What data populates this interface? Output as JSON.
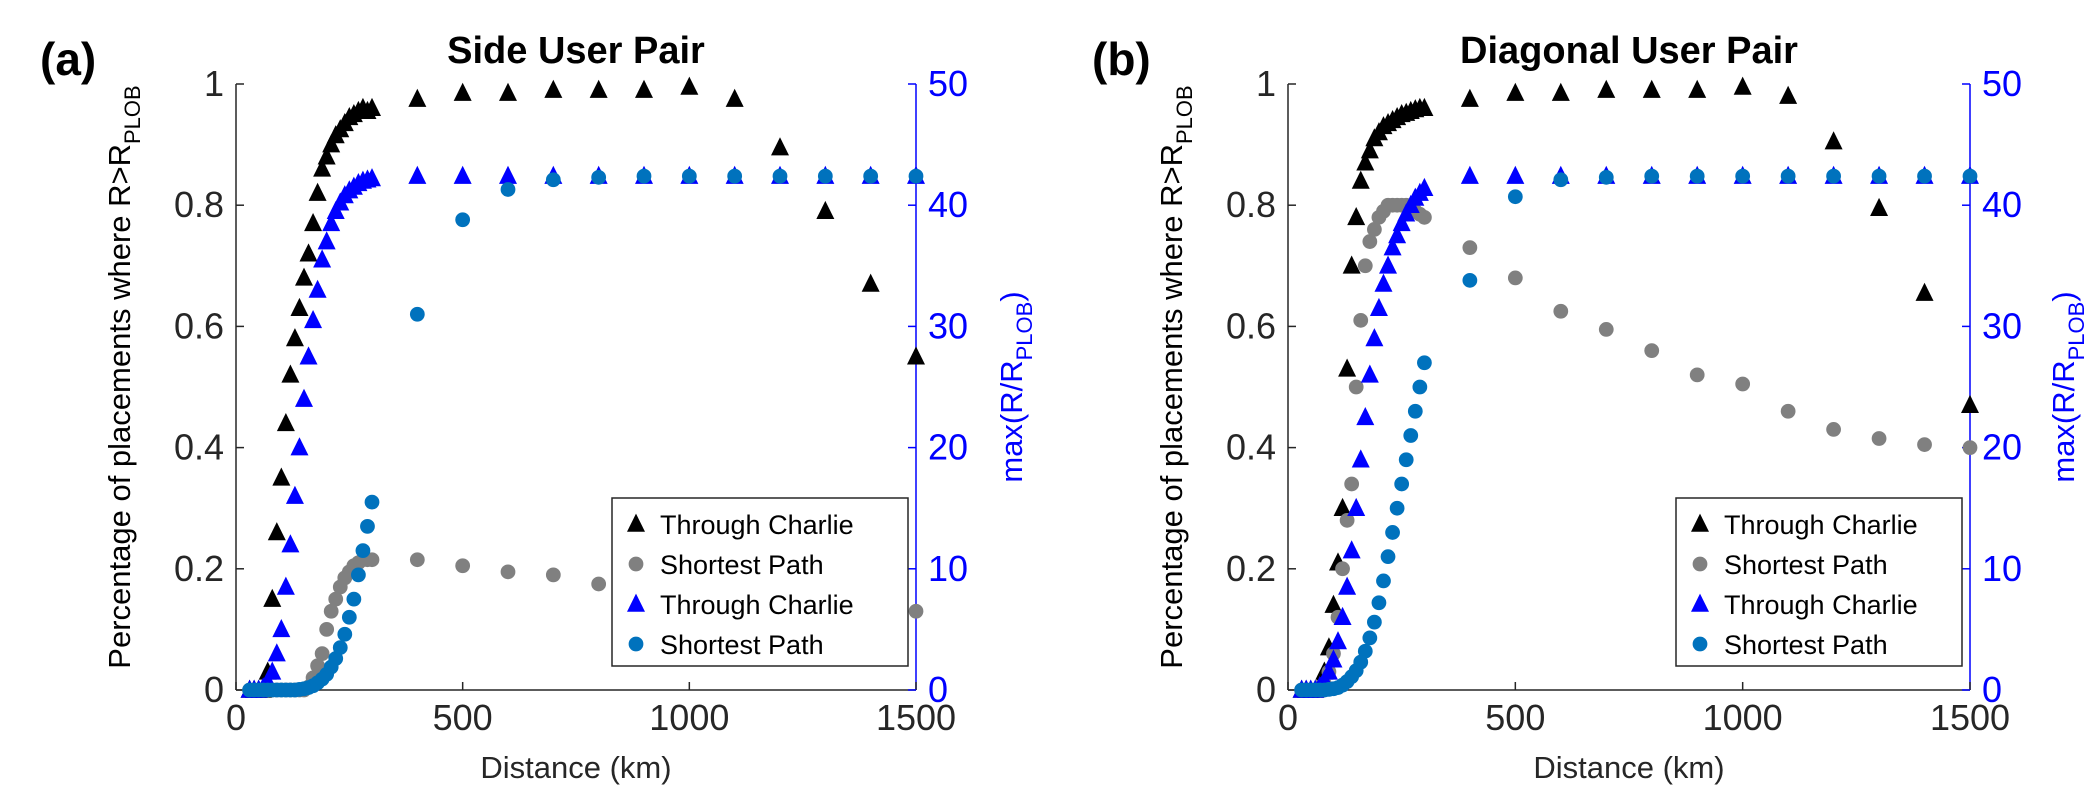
{
  "chart_data": [
    {
      "type": "scatter",
      "panel_label": "(a)",
      "title": "Side User Pair",
      "xlabel": "Distance (km)",
      "ylabel": {
        "main": "Percentage of placements where R>R",
        "sub": "PLOB"
      },
      "ylabel_right": {
        "main": "max(R/R",
        "sub": "PLOB",
        "close": ")"
      },
      "xlim": [
        0,
        1500
      ],
      "ylim": [
        0,
        1
      ],
      "ylim_right": [
        0,
        50
      ],
      "xticks": [
        "0",
        "500",
        "1000",
        "1500"
      ],
      "yticks": [
        "0",
        "0.2",
        "0.4",
        "0.6",
        "0.8",
        "1"
      ],
      "yticks_right": [
        "0",
        "10",
        "20",
        "30",
        "40",
        "50"
      ],
      "grid": false,
      "legend_position": "lower-right",
      "series": [
        {
          "name": "Through Charlie",
          "axis": "left",
          "marker": "triangle",
          "color": "#000000",
          "x": [
            30,
            40,
            50,
            60,
            70,
            80,
            90,
            100,
            110,
            120,
            130,
            140,
            150,
            160,
            170,
            180,
            190,
            200,
            210,
            220,
            230,
            240,
            250,
            260,
            270,
            280,
            290,
            300,
            400,
            500,
            600,
            700,
            800,
            900,
            1000,
            1100,
            1200,
            1300,
            1400,
            1500
          ],
          "y": [
            0,
            0,
            0,
            0,
            0.03,
            0.15,
            0.26,
            0.35,
            0.44,
            0.52,
            0.58,
            0.63,
            0.68,
            0.72,
            0.77,
            0.82,
            0.86,
            0.88,
            0.9,
            0.915,
            0.925,
            0.935,
            0.945,
            0.95,
            0.955,
            0.96,
            0.955,
            0.96,
            0.975,
            0.985,
            0.985,
            0.99,
            0.99,
            0.99,
            0.995,
            0.975,
            0.895,
            0.79,
            0.67,
            0.55
          ]
        },
        {
          "name": "Shortest Path",
          "axis": "left",
          "marker": "circle",
          "color": "#808080",
          "x": [
            30,
            40,
            50,
            60,
            70,
            80,
            90,
            100,
            110,
            120,
            130,
            140,
            150,
            160,
            170,
            180,
            190,
            200,
            210,
            220,
            230,
            240,
            250,
            260,
            270,
            280,
            290,
            300,
            400,
            500,
            600,
            700,
            800,
            900,
            1000,
            1100,
            1200,
            1300,
            1400,
            1500
          ],
          "y": [
            0,
            0,
            0,
            0,
            0,
            0,
            0,
            0,
            0,
            0,
            0,
            0,
            0,
            0.005,
            0.02,
            0.04,
            0.06,
            0.1,
            0.13,
            0.15,
            0.17,
            0.185,
            0.195,
            0.205,
            0.21,
            0.215,
            0.215,
            0.215,
            0.215,
            0.205,
            0.195,
            0.19,
            0.175,
            0.165,
            0.155,
            0.15,
            0.145,
            0.14,
            0.135,
            0.13
          ]
        },
        {
          "name": "Through Charlie",
          "axis": "right",
          "marker": "triangle",
          "color": "#0000ff",
          "x": [
            30,
            40,
            50,
            60,
            70,
            80,
            90,
            100,
            110,
            120,
            130,
            140,
            150,
            160,
            170,
            180,
            190,
            200,
            210,
            220,
            230,
            240,
            250,
            260,
            270,
            280,
            290,
            300,
            400,
            500,
            600,
            700,
            800,
            900,
            1000,
            1100,
            1200,
            1300,
            1400,
            1500
          ],
          "y": [
            0,
            0,
            0,
            0.2,
            0.7,
            1.5,
            3,
            5,
            8.5,
            12,
            16,
            20,
            24,
            27.5,
            30.5,
            33,
            35.5,
            37,
            38.5,
            39.5,
            40.2,
            40.8,
            41.2,
            41.5,
            41.8,
            42,
            42.1,
            42.2,
            42.4,
            42.4,
            42.4,
            42.4,
            42.4,
            42.4,
            42.4,
            42.4,
            42.4,
            42.4,
            42.4,
            42.4
          ]
        },
        {
          "name": "Shortest Path",
          "axis": "right",
          "marker": "circle",
          "color": "#0072bd",
          "x": [
            30,
            40,
            50,
            60,
            70,
            80,
            90,
            100,
            110,
            120,
            130,
            140,
            150,
            160,
            170,
            180,
            190,
            200,
            210,
            220,
            230,
            240,
            250,
            260,
            270,
            280,
            290,
            300,
            400,
            500,
            600,
            700,
            800,
            900,
            1000,
            1100,
            1200,
            1300,
            1400,
            1500
          ],
          "y": [
            0,
            0,
            0,
            0,
            0,
            0,
            0,
            0,
            0,
            0,
            0,
            0.05,
            0.1,
            0.2,
            0.35,
            0.6,
            0.9,
            1.3,
            1.9,
            2.6,
            3.5,
            4.6,
            6,
            7.5,
            9.5,
            11.5,
            13.5,
            15.5,
            31,
            38.8,
            41.3,
            42.1,
            42.3,
            42.4,
            42.4,
            42.4,
            42.4,
            42.4,
            42.4,
            42.4
          ]
        }
      ]
    },
    {
      "type": "scatter",
      "panel_label": "(b)",
      "title": "Diagonal User Pair",
      "xlabel": "Distance (km)",
      "ylabel": {
        "main": "Percentage of placements where R>R",
        "sub": "PLOB"
      },
      "ylabel_right": {
        "main": "max(R/R",
        "sub": "PLOB",
        "close": ")"
      },
      "xlim": [
        0,
        1500
      ],
      "ylim": [
        0,
        1
      ],
      "ylim_right": [
        0,
        50
      ],
      "xticks": [
        "0",
        "500",
        "1000",
        "1500"
      ],
      "yticks": [
        "0",
        "0.2",
        "0.4",
        "0.6",
        "0.8",
        "1"
      ],
      "yticks_right": [
        "0",
        "10",
        "20",
        "30",
        "40",
        "50"
      ],
      "grid": false,
      "legend_position": "lower-right",
      "series": [
        {
          "name": "Through Charlie",
          "axis": "left",
          "marker": "triangle",
          "color": "#000000",
          "x": [
            30,
            40,
            50,
            60,
            70,
            80,
            90,
            100,
            110,
            120,
            130,
            140,
            150,
            160,
            170,
            180,
            190,
            200,
            210,
            220,
            230,
            240,
            250,
            260,
            270,
            280,
            290,
            300,
            400,
            500,
            600,
            700,
            800,
            900,
            1000,
            1100,
            1200,
            1300,
            1400,
            1500
          ],
          "y": [
            0,
            0,
            0,
            0,
            0.01,
            0.03,
            0.07,
            0.14,
            0.21,
            0.3,
            0.53,
            0.7,
            0.78,
            0.84,
            0.87,
            0.89,
            0.91,
            0.92,
            0.93,
            0.935,
            0.94,
            0.945,
            0.95,
            0.952,
            0.955,
            0.958,
            0.96,
            0.96,
            0.975,
            0.985,
            0.985,
            0.99,
            0.99,
            0.99,
            0.995,
            0.98,
            0.905,
            0.795,
            0.655,
            0.47
          ]
        },
        {
          "name": "Shortest Path",
          "axis": "left",
          "marker": "circle",
          "color": "#808080",
          "x": [
            30,
            40,
            50,
            60,
            70,
            80,
            90,
            100,
            110,
            120,
            130,
            140,
            150,
            160,
            170,
            180,
            190,
            200,
            210,
            220,
            230,
            240,
            250,
            260,
            270,
            280,
            290,
            300,
            400,
            500,
            600,
            700,
            800,
            900,
            1000,
            1100,
            1200,
            1300,
            1400,
            1500
          ],
          "y": [
            0,
            0,
            0,
            0,
            0.005,
            0.01,
            0.03,
            0.06,
            0.12,
            0.2,
            0.28,
            0.34,
            0.5,
            0.61,
            0.7,
            0.74,
            0.76,
            0.78,
            0.79,
            0.8,
            0.8,
            0.8,
            0.8,
            0.8,
            0.795,
            0.79,
            0.785,
            0.78,
            0.73,
            0.68,
            0.625,
            0.595,
            0.56,
            0.52,
            0.505,
            0.46,
            0.43,
            0.415,
            0.405,
            0.4
          ]
        },
        {
          "name": "Through Charlie",
          "axis": "right",
          "marker": "triangle",
          "color": "#0000ff",
          "x": [
            30,
            40,
            50,
            60,
            70,
            80,
            90,
            100,
            110,
            120,
            130,
            140,
            150,
            160,
            170,
            180,
            190,
            200,
            210,
            220,
            230,
            240,
            250,
            260,
            270,
            280,
            290,
            300,
            400,
            500,
            600,
            700,
            800,
            900,
            1000,
            1100,
            1200,
            1300,
            1400,
            1500
          ],
          "y": [
            0,
            0,
            0,
            0,
            0.3,
            0.8,
            1.5,
            2.5,
            4,
            6,
            8.5,
            11.5,
            15,
            19,
            22.5,
            26,
            29,
            31.5,
            33.5,
            35,
            36.5,
            37.5,
            38.5,
            39.3,
            40,
            40.6,
            41,
            41.4,
            42.4,
            42.4,
            42.4,
            42.4,
            42.4,
            42.4,
            42.4,
            42.4,
            42.4,
            42.4,
            42.4,
            42.4
          ]
        },
        {
          "name": "Shortest Path",
          "axis": "right",
          "marker": "circle",
          "color": "#0072bd",
          "x": [
            30,
            40,
            50,
            60,
            70,
            80,
            90,
            100,
            110,
            120,
            130,
            140,
            150,
            160,
            170,
            180,
            190,
            200,
            210,
            220,
            230,
            240,
            250,
            260,
            270,
            280,
            290,
            300,
            400,
            500,
            600,
            700,
            800,
            900,
            1000,
            1100,
            1200,
            1300,
            1400,
            1500
          ],
          "y": [
            0,
            0,
            0,
            0,
            0,
            0,
            0.05,
            0.1,
            0.2,
            0.4,
            0.7,
            1.1,
            1.6,
            2.3,
            3.2,
            4.3,
            5.6,
            7.2,
            9,
            11,
            13,
            15,
            17,
            19,
            21,
            23,
            25,
            27,
            33.8,
            40.7,
            42.1,
            42.3,
            42.4,
            42.4,
            42.4,
            42.4,
            42.4,
            42.4,
            42.4,
            42.4
          ]
        }
      ]
    }
  ]
}
